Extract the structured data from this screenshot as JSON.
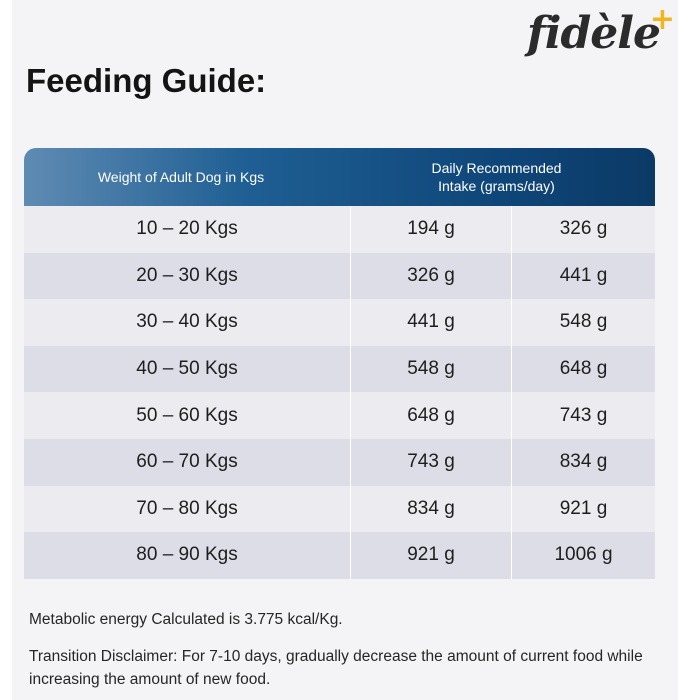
{
  "brand": {
    "logo_text": "fidèle",
    "logo_plus": "+"
  },
  "title": "Feeding Guide:",
  "table": {
    "header_weight": "Weight of Adult Dog in Kgs",
    "header_intake_line1": "Daily Recommended",
    "header_intake_line2": "Intake (grams/day)",
    "rows": [
      {
        "weight": "10 – 20 Kgs",
        "min": "194 g",
        "max": "326 g"
      },
      {
        "weight": "20 – 30 Kgs",
        "min": "326 g",
        "max": "441 g"
      },
      {
        "weight": "30 – 40 Kgs",
        "min": "441 g",
        "max": "548 g"
      },
      {
        "weight": "40 – 50 Kgs",
        "min": "548 g",
        "max": "648 g"
      },
      {
        "weight": "50 – 60 Kgs",
        "min": "648 g",
        "max": "743 g"
      },
      {
        "weight": "60 – 70 Kgs",
        "min": "743 g",
        "max": "834 g"
      },
      {
        "weight": "70 – 80 Kgs",
        "min": "834 g",
        "max": "921 g"
      },
      {
        "weight": "80 – 90 Kgs",
        "min": "921 g",
        "max": "1006 g"
      }
    ]
  },
  "notes": {
    "energy": "Metabolic energy Calculated is 3.775 kcal/Kg.",
    "transition": "Transition Disclaimer: For 7-10 days, gradually decrease the amount of current food while increasing the amount of new food."
  },
  "colors": {
    "header_dark": "#0b3a66",
    "header_light": "#5f8bb3",
    "accent_plus": "#f2b51b"
  }
}
